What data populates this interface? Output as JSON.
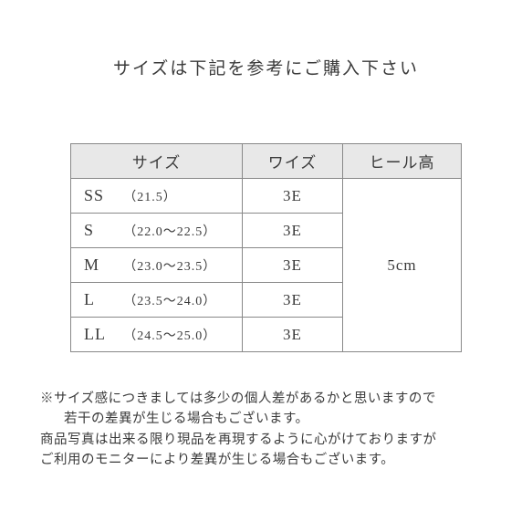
{
  "title": "サイズは下記を参考にご購入下さい",
  "table": {
    "headers": {
      "size": "サイズ",
      "width": "ワイズ",
      "heel": "ヒール高"
    },
    "rows": [
      {
        "code": "SS",
        "range": "（21.5）",
        "width": "3E"
      },
      {
        "code": "S",
        "range": "（22.0～22.5）",
        "width": "3E"
      },
      {
        "code": "M",
        "range": "（23.0～23.5）",
        "width": "3E"
      },
      {
        "code": "L",
        "range": "（23.5～24.0）",
        "width": "3E"
      },
      {
        "code": "LL",
        "range": "（24.5～25.0）",
        "width": "3E"
      }
    ],
    "heel": "5cm"
  },
  "notes": {
    "line1": "※サイズ感につきましては多少の個人差があるかと思いますので",
    "line2": "若干の差異が生じる場合もございます。",
    "line3": "商品写真は出来る限り現品を再現するように心がけておりますが",
    "line4": "ご利用のモニターにより差異が生じる場合もございます。"
  }
}
